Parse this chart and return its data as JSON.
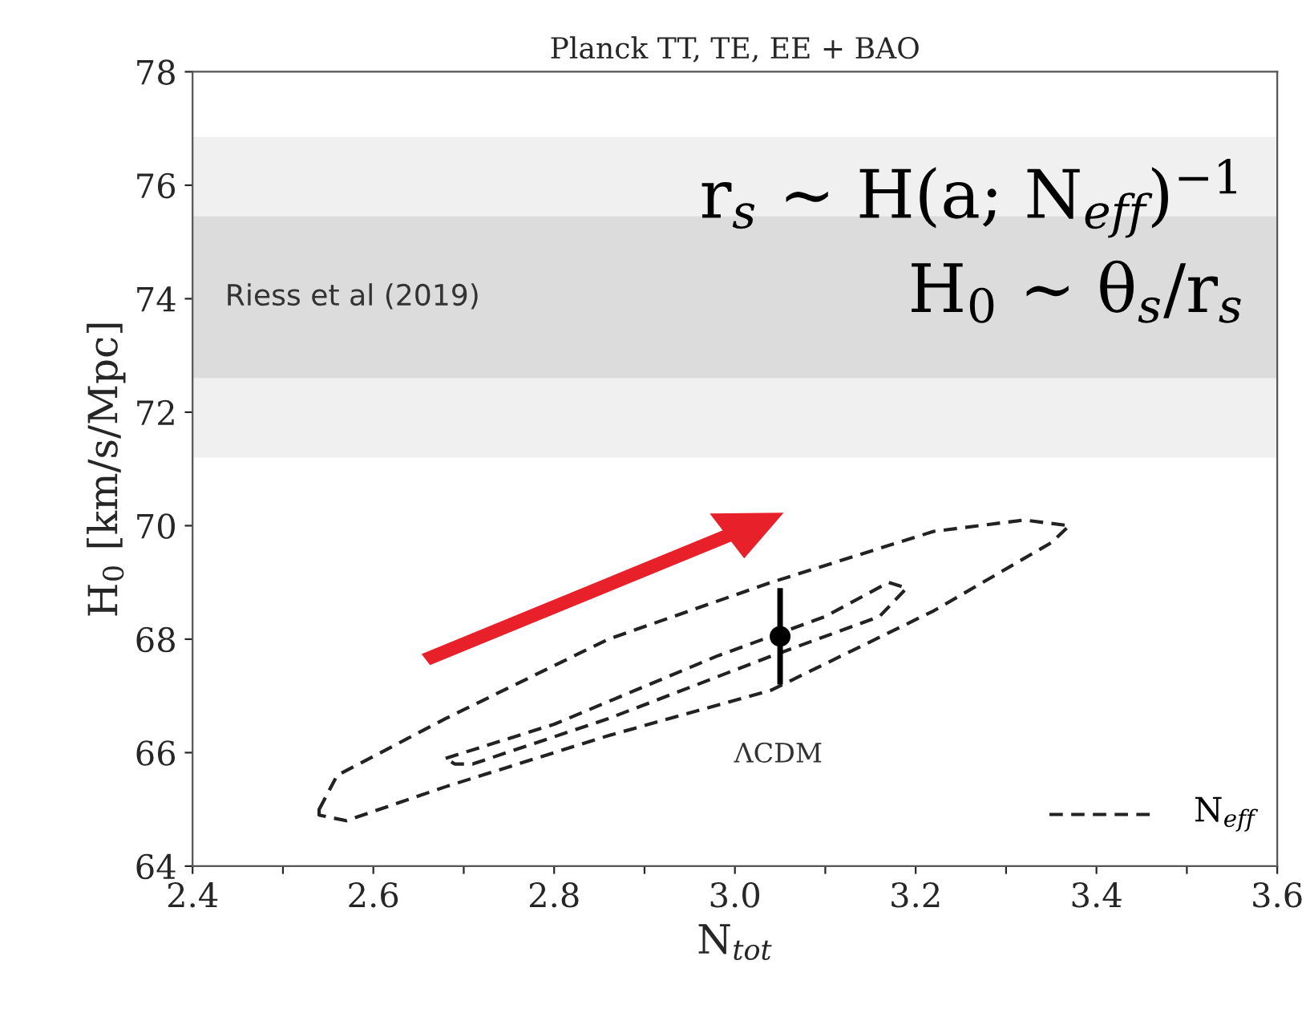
{
  "chart_data": {
    "type": "scatter",
    "title": "Planck TT, TE, EE + BAO",
    "xlabel": "N$_{tot}$",
    "ylabel": "H$_{0}$ [km/s/Mpc]",
    "xlim": [
      2.4,
      3.6
    ],
    "ylim": [
      64,
      78
    ],
    "xticks": [
      2.4,
      {
        "value": 2.5,
        "label": null
      },
      2.6,
      {
        "value": 2.7,
        "label": null
      },
      2.8,
      {
        "value": 2.9,
        "label": null
      },
      {
        "value": 3.0,
        "label": "3.0"
      },
      {
        "value": 3.1,
        "label": null
      },
      3.2,
      {
        "value": 3.3,
        "label": null
      },
      3.4,
      {
        "value": 3.5,
        "label": null
      },
      3.6
    ],
    "yticks": [
      64,
      66,
      68,
      70,
      72,
      74,
      76,
      78
    ],
    "grid": false,
    "bands": [
      {
        "axis": "y",
        "from": 71.2,
        "to": 76.85,
        "label": null,
        "color": "#f0f0f0"
      },
      {
        "axis": "y",
        "from": 72.6,
        "to": 75.45,
        "label": "Riess et al (2019)",
        "color": "#dcdcdc"
      }
    ],
    "series": [
      {
        "color": "#000000",
        "marker": "circle",
        "x": [
          3.05
        ],
        "values": [
          68.05
        ],
        "errors": [
          0.85
        ]
      }
    ],
    "annotations": [
      "ΛCDM",
      "N$_{eff}$",
      "r$_{s}$ ∼ H(a; N$_{eff}$)$^{−1}$",
      "H$_{0}$ ∼ θ$_{s}$/r$_{s}$"
    ]
  }
}
